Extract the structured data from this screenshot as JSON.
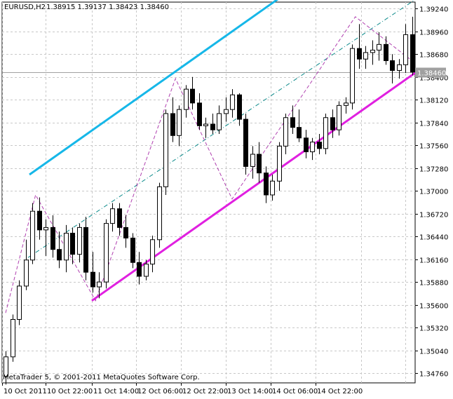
{
  "chart_header": {
    "symbol": "EURUSD,H2",
    "ohlc": "1.38915 1.39137 1.38423 1.38460"
  },
  "copyright": "MetaTrader 5, © 2001-2011 MetaQuotes Software Corp.",
  "colors": {
    "background": "#ffffff",
    "grid": "#c8c8c8",
    "candle": "#000000",
    "upper_channel": "#16b7e8",
    "lower_channel": "#e020e0",
    "middle_line": "#0a8a8a",
    "zigzag": "#b040b0",
    "bid_line": "#a0a0a0",
    "price_tag_bg": "#a0a0a0",
    "price_tag_text": "#ffffff"
  },
  "chart_data": {
    "type": "candlestick",
    "title": "EURUSD,H2",
    "y_ticks": [
      "1.39240",
      "1.38960",
      "1.38680",
      "1.38400",
      "1.38120",
      "1.37840",
      "1.37560",
      "1.37280",
      "1.37000",
      "1.36720",
      "1.36440",
      "1.36160",
      "1.35880",
      "1.35600",
      "1.35320",
      "1.35040",
      "1.34760"
    ],
    "x_ticks": [
      "10 Oct 2011",
      "10 Oct 22:00",
      "11 Oct 14:00",
      "12 Oct 06:00",
      "12 Oct 22:00",
      "13 Oct 14:00",
      "14 Oct 06:00",
      "14 Oct 22:00"
    ],
    "ylim": [
      1.3464,
      1.3932
    ],
    "current_price": "1.38460",
    "grid": true,
    "candles": [
      [
        1.3472,
        1.3503,
        1.3462,
        1.3496
      ],
      [
        1.3496,
        1.3548,
        1.349,
        1.3542
      ],
      [
        1.3542,
        1.359,
        1.3535,
        1.3583
      ],
      [
        1.3583,
        1.364,
        1.3578,
        1.3615
      ],
      [
        1.3615,
        1.3685,
        1.361,
        1.3675
      ],
      [
        1.3675,
        1.3692,
        1.364,
        1.3652
      ],
      [
        1.3652,
        1.3665,
        1.362,
        1.3655
      ],
      [
        1.3655,
        1.367,
        1.3618,
        1.3628
      ],
      [
        1.3628,
        1.365,
        1.3605,
        1.3615
      ],
      [
        1.3615,
        1.3658,
        1.36,
        1.3648
      ],
      [
        1.3648,
        1.3655,
        1.361,
        1.3622
      ],
      [
        1.3622,
        1.366,
        1.3612,
        1.3655
      ],
      [
        1.3655,
        1.3668,
        1.359,
        1.36
      ],
      [
        1.36,
        1.3625,
        1.3575,
        1.3582
      ],
      [
        1.3582,
        1.36,
        1.3568,
        1.3588
      ],
      [
        1.3588,
        1.3665,
        1.358,
        1.366
      ],
      [
        1.366,
        1.3685,
        1.365,
        1.3678
      ],
      [
        1.3678,
        1.3685,
        1.3645,
        1.3655
      ],
      [
        1.3655,
        1.367,
        1.363,
        1.3642
      ],
      [
        1.3642,
        1.3648,
        1.3605,
        1.3612
      ],
      [
        1.3612,
        1.3625,
        1.3585,
        1.3595
      ],
      [
        1.3595,
        1.3615,
        1.359,
        1.361
      ],
      [
        1.361,
        1.3645,
        1.36,
        1.364
      ],
      [
        1.364,
        1.371,
        1.363,
        1.3705
      ],
      [
        1.3705,
        1.38,
        1.3695,
        1.3795
      ],
      [
        1.3795,
        1.3815,
        1.376,
        1.3768
      ],
      [
        1.3768,
        1.3805,
        1.3755,
        1.38
      ],
      [
        1.38,
        1.383,
        1.379,
        1.3825
      ],
      [
        1.3825,
        1.384,
        1.38,
        1.3808
      ],
      [
        1.3808,
        1.382,
        1.3775,
        1.378
      ],
      [
        1.378,
        1.379,
        1.3765,
        1.3782
      ],
      [
        1.3782,
        1.3795,
        1.377,
        1.3775
      ],
      [
        1.3775,
        1.3805,
        1.377,
        1.3795
      ],
      [
        1.3795,
        1.3815,
        1.3785,
        1.38
      ],
      [
        1.38,
        1.3825,
        1.379,
        1.3818
      ],
      [
        1.3818,
        1.382,
        1.378,
        1.3788
      ],
      [
        1.3788,
        1.3795,
        1.372,
        1.373
      ],
      [
        1.373,
        1.3755,
        1.3715,
        1.3745
      ],
      [
        1.3745,
        1.376,
        1.371,
        1.3722
      ],
      [
        1.3722,
        1.373,
        1.3685,
        1.3695
      ],
      [
        1.3695,
        1.372,
        1.3688,
        1.3712
      ],
      [
        1.3712,
        1.376,
        1.37,
        1.3755
      ],
      [
        1.3755,
        1.3795,
        1.3745,
        1.379
      ],
      [
        1.379,
        1.3805,
        1.377,
        1.3778
      ],
      [
        1.3778,
        1.38,
        1.376,
        1.3765
      ],
      [
        1.3765,
        1.3775,
        1.374,
        1.3748
      ],
      [
        1.3748,
        1.3765,
        1.3738,
        1.376
      ],
      [
        1.376,
        1.377,
        1.3745,
        1.3752
      ],
      [
        1.3752,
        1.3795,
        1.3745,
        1.379
      ],
      [
        1.379,
        1.38,
        1.3765,
        1.3775
      ],
      [
        1.3775,
        1.381,
        1.3768,
        1.3805
      ],
      [
        1.3805,
        1.3815,
        1.3795,
        1.3808
      ],
      [
        1.3808,
        1.388,
        1.38,
        1.3875
      ],
      [
        1.3875,
        1.3905,
        1.385,
        1.3862
      ],
      [
        1.3862,
        1.3878,
        1.385,
        1.387
      ],
      [
        1.387,
        1.3885,
        1.3855,
        1.3873
      ],
      [
        1.3873,
        1.3895,
        1.386,
        1.388
      ],
      [
        1.388,
        1.389,
        1.3855,
        1.386
      ],
      [
        1.386,
        1.3868,
        1.3832,
        1.3848
      ],
      [
        1.3848,
        1.3862,
        1.3838,
        1.3855
      ],
      [
        1.3855,
        1.3905,
        1.3845,
        1.3892
      ],
      [
        1.3892,
        1.3914,
        1.3842,
        1.3846
      ]
    ],
    "upper_channel": [
      [
        1.372,
        1.3935
      ]
    ],
    "lower_channel": [
      [
        1.3565,
        1.3845
      ]
    ],
    "zigzag": [
      1.356,
      1.3695,
      1.3568,
      1.3835,
      1.3688,
      1.3914,
      1.386
    ]
  }
}
